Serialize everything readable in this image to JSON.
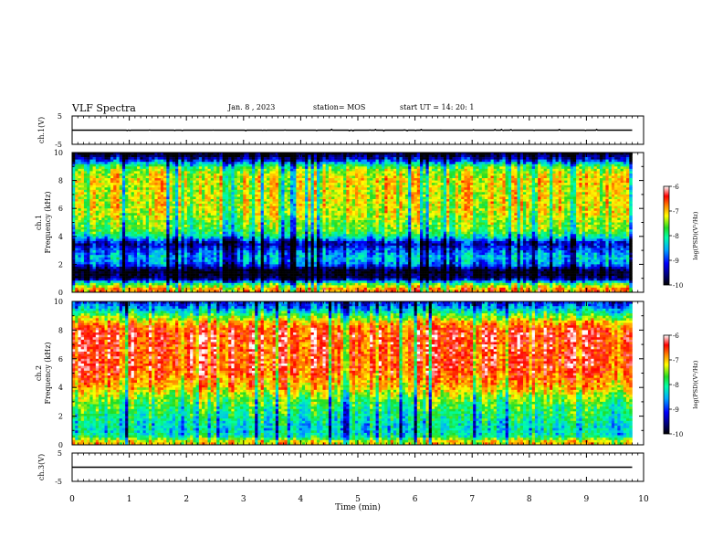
{
  "header": {
    "title": "VLF Spectra",
    "date": "Jan. 8 , 2023",
    "station": "station= MOS",
    "start": "start UT = 14: 20: 1"
  },
  "chart_data": [
    {
      "type": "line",
      "panel": "ch1-waveform",
      "ylabel": "ch.1(V)",
      "ylim": [
        -5,
        5
      ],
      "yticks": [
        "5",
        "-5"
      ],
      "xlim": [
        0,
        10
      ],
      "series": [
        {
          "x": [
            0,
            9.8
          ],
          "y": [
            0,
            0
          ]
        }
      ]
    },
    {
      "type": "heatmap",
      "panel": "ch1-spectrogram",
      "ylabel": "ch.1 Frequency (kHz)",
      "ylim": [
        0,
        10
      ],
      "yticks": [
        "0",
        "2",
        "4",
        "6",
        "8",
        "10"
      ],
      "xlim": [
        0,
        10
      ],
      "data_end_min": 9.8,
      "frequency_profile_kHz": [
        0.2,
        0.6,
        1.0,
        1.5,
        2.0,
        2.5,
        3.0,
        3.5,
        4.0,
        4.5,
        5.0,
        5.5,
        6.0,
        6.5,
        7.0,
        7.5,
        8.0,
        8.5,
        9.0,
        9.5,
        9.9
      ],
      "typical_log_psd": [
        -6.8,
        -7.8,
        -9.7,
        -10.0,
        -8.8,
        -8.5,
        -8.9,
        -9.4,
        -8.2,
        -7.7,
        -7.6,
        -7.4,
        -7.3,
        -7.3,
        -7.3,
        -7.3,
        -7.2,
        -7.4,
        -7.8,
        -9.2,
        -9.9
      ],
      "colorbar": {
        "label": "log(PSD)(V²/Hz)",
        "range": [
          -10,
          -6
        ],
        "ticks": [
          "-6",
          "-7",
          "-8",
          "-9",
          "-10"
        ]
      }
    },
    {
      "type": "heatmap",
      "panel": "ch2-spectrogram",
      "ylabel": "ch.2 Frequency (kHz)",
      "ylim": [
        0,
        10
      ],
      "yticks": [
        "0",
        "2",
        "4",
        "6",
        "8",
        "10"
      ],
      "xlim": [
        0,
        10
      ],
      "data_end_min": 9.8,
      "frequency_profile_kHz": [
        0.2,
        0.6,
        1.0,
        1.5,
        2.0,
        2.5,
        3.0,
        3.5,
        4.0,
        4.5,
        5.0,
        5.5,
        6.0,
        6.5,
        7.0,
        7.5,
        8.0,
        8.5,
        9.0,
        9.5,
        9.9
      ],
      "typical_log_psd": [
        -7.2,
        -8.2,
        -8.4,
        -8.3,
        -8.1,
        -8.0,
        -7.8,
        -7.5,
        -7.1,
        -6.9,
        -6.7,
        -6.6,
        -6.6,
        -6.6,
        -6.6,
        -6.5,
        -6.6,
        -7.0,
        -7.8,
        -8.6,
        -9.1
      ],
      "colorbar": {
        "label": "log(PSD)(V²/Hz)",
        "range": [
          -10,
          -6
        ],
        "ticks": [
          "-6",
          "-7",
          "-8",
          "-9",
          "-10"
        ]
      }
    },
    {
      "type": "line",
      "panel": "ch3-waveform",
      "ylabel": "ch.3(V)",
      "ylim": [
        -5,
        5
      ],
      "yticks": [
        "5",
        "-5"
      ],
      "xlim": [
        0,
        10
      ],
      "series": [
        {
          "x": [
            0,
            9.8
          ],
          "y": [
            0,
            0
          ]
        }
      ]
    }
  ],
  "x_axis": {
    "label": "Time (min)",
    "ticks": [
      "0",
      "1",
      "2",
      "3",
      "4",
      "5",
      "6",
      "7",
      "8",
      "9",
      "10"
    ]
  },
  "colors": {
    "colormap": [
      "#000000",
      "#00007a",
      "#0000ff",
      "#00aaff",
      "#00ffaa",
      "#22dd22",
      "#ffff00",
      "#ff8800",
      "#ff0000",
      "#ffffff"
    ]
  }
}
